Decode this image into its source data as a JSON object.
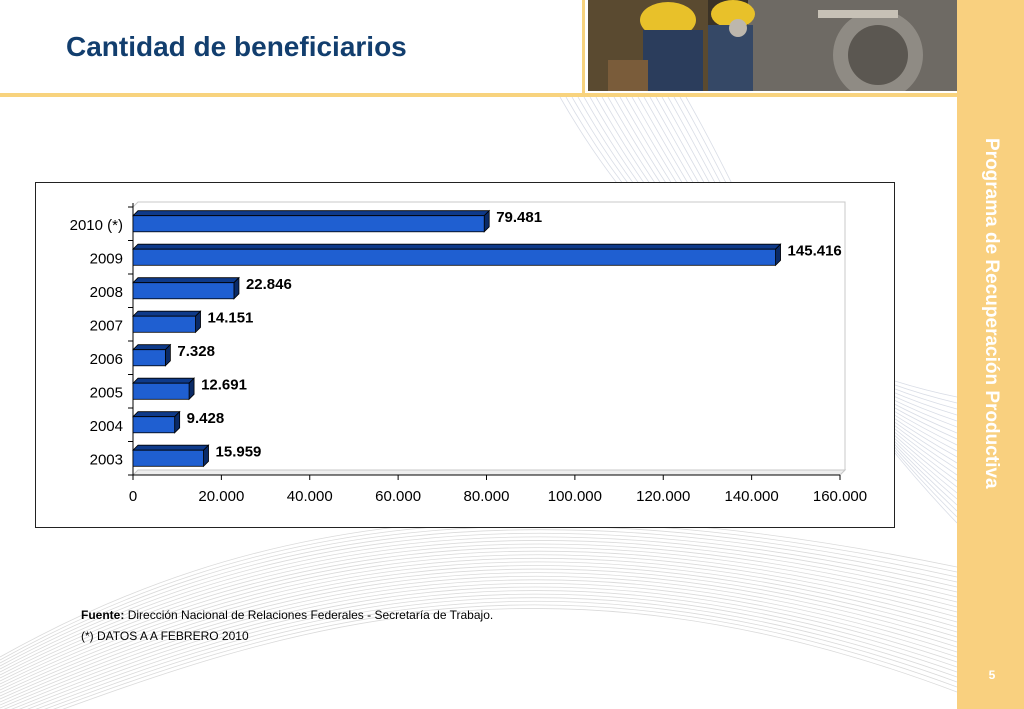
{
  "slide": {
    "title": "Cantidad de beneficiarios",
    "sidebar_text": "Programa de Recuperación Productiva",
    "page_number": "5",
    "source_label": "Fuente:",
    "source_text": "Dirección Nacional de Relaciones Federales - Secretaría de Trabajo.",
    "footnote": "(*) DATOS A A FEBRERO 2010",
    "colors": {
      "title": "#123e6e",
      "accent": "#f8d37e",
      "sidebar": "#f9d07f",
      "bar": "#1f5fd1"
    },
    "photo_icon": "construction-workers-photo"
  },
  "chart_data": {
    "type": "bar",
    "orientation": "horizontal",
    "categories": [
      "2010 (*)",
      "2009",
      "2008",
      "2007",
      "2006",
      "2005",
      "2004",
      "2003"
    ],
    "values": [
      79481,
      145416,
      22846,
      14151,
      7328,
      12691,
      9428,
      15959
    ],
    "value_labels": [
      "79.481",
      "145.416",
      "22.846",
      "14.151",
      "7.328",
      "12.691",
      "9.428",
      "15.959"
    ],
    "xlim": [
      0,
      160000
    ],
    "x_ticks": [
      0,
      20000,
      40000,
      60000,
      80000,
      100000,
      120000,
      140000,
      160000
    ],
    "x_tick_labels": [
      "0",
      "20.000",
      "40.000",
      "60.000",
      "80.000",
      "100.000",
      "120.000",
      "140.000",
      "160.000"
    ],
    "grid": false,
    "legend": "none"
  }
}
